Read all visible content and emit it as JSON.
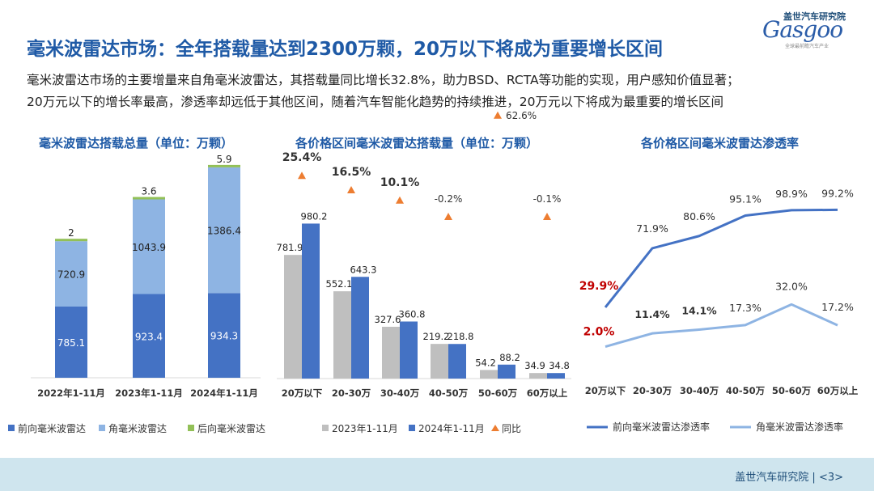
{
  "logo": {
    "top_text": "盖世汽车研究院",
    "main_text": "Gasgoo",
    "sub_text": "全球最前瞻汽车产业"
  },
  "title": "毫米波雷达市场：全年搭载量达到2300万颗，20万以下将成为重要增长区间",
  "intro": {
    "line1": "毫米波雷达市场的主要增量来自角毫米波雷达，其搭载量同比增长32.8%，助力BSD、RCTA等功能的实现，用户感知价值显著；",
    "line2": "20万元以下的增长率最高，渗透率却远低于其他区间，随着汽车智能化趋势的持续推进，20万元以下将成为最重要的增长区间"
  },
  "colors": {
    "front": "#4472c4",
    "corner": "#8eb4e3",
    "rear": "#92c057",
    "gray": "#bfbfbf",
    "dark_blue": "#4472c4",
    "orange": "#ed7d31",
    "red": "#c00000",
    "title_blue": "#1f5aa6"
  },
  "chart_data": [
    {
      "type": "bar",
      "stacked": true,
      "title": "毫米波雷达搭载总量（单位：万颗）",
      "categories": [
        "2022年1-11月",
        "2023年1-11月",
        "2024年1-11月"
      ],
      "series": [
        {
          "name": "前向毫米波雷达",
          "values": [
            785.1,
            923.4,
            934.3
          ],
          "color": "#4472c4"
        },
        {
          "name": "角毫米波雷达",
          "values": [
            720.9,
            1043.9,
            1386.4
          ],
          "color": "#8eb4e3"
        },
        {
          "name": "后向毫米波雷达",
          "values": [
            2,
            3.6,
            5.9
          ],
          "color": "#92c057"
        }
      ],
      "value_labels": [
        [
          "785.1",
          "923.4",
          "934.3"
        ],
        [
          "720.9",
          "1043.9",
          "1386.4"
        ],
        [
          "2",
          "3.6",
          "5.9"
        ]
      ],
      "ylim": [
        0,
        2400
      ],
      "legend": "bottom"
    },
    {
      "type": "bar",
      "title": "各价格区间毫米波雷达搭载量（单位：万颗）",
      "categories": [
        "20万以下",
        "20-30万",
        "30-40万",
        "40-50万",
        "50-60万",
        "60万以上"
      ],
      "series": [
        {
          "name": "2023年1-11月",
          "values": [
            781.9,
            552.1,
            327.6,
            219.2,
            54.2,
            34.9
          ],
          "color": "#bfbfbf"
        },
        {
          "name": "2024年1-11月",
          "values": [
            980.2,
            643.3,
            360.8,
            218.8,
            88.2,
            34.8
          ],
          "color": "#4472c4"
        }
      ],
      "value_labels": [
        [
          "781.9",
          "552.1",
          "327.6",
          "219.2",
          "54.2",
          "34.9"
        ],
        [
          "980.2",
          "643.3",
          "360.8",
          "218.8",
          "88.2",
          "34.8"
        ]
      ],
      "yoy": {
        "name": "同比",
        "values": [
          25.4,
          16.5,
          10.1,
          -0.2,
          62.6,
          -0.1
        ],
        "labels": [
          "25.4%",
          "16.5%",
          "10.1%",
          "-0.2%",
          "62.6%",
          "-0.1%"
        ],
        "color": "#ed7d31"
      },
      "ylim": [
        0,
        1100
      ],
      "legend": "bottom"
    },
    {
      "type": "line",
      "title": "各价格区间毫米波雷达渗透率",
      "categories": [
        "20万以下",
        "20-30万",
        "30-40万",
        "40-50万",
        "50-60万",
        "60万以上"
      ],
      "series": [
        {
          "name": "前向毫米波雷达渗透率",
          "values": [
            29.9,
            71.9,
            80.6,
            95.1,
            98.9,
            99.2
          ],
          "labels": [
            "29.9%",
            "71.9%",
            "80.6%",
            "95.1%",
            "98.9%",
            "99.2%"
          ],
          "color": "#4472c4"
        },
        {
          "name": "角毫米波雷达渗透率",
          "values": [
            2.0,
            11.4,
            14.1,
            17.3,
            32.0,
            17.2
          ],
          "labels": [
            "2.0%",
            "11.4%",
            "14.1%",
            "17.3%",
            "32.0%",
            "17.2%"
          ],
          "color": "#8eb4e3"
        }
      ],
      "ylim": [
        0,
        110
      ],
      "legend": "bottom"
    }
  ],
  "footer": {
    "text": "盖世汽车研究院 | <3>"
  }
}
